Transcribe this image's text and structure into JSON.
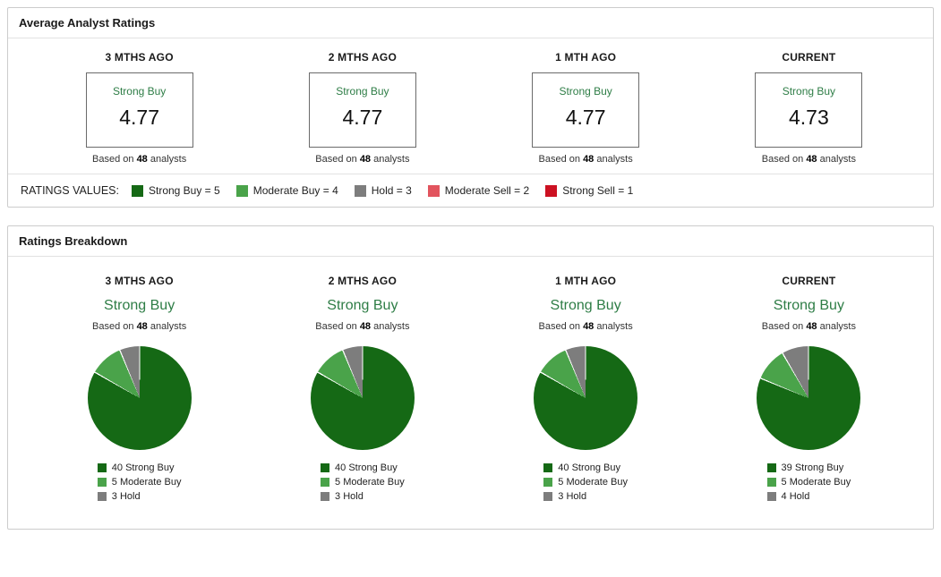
{
  "colors": {
    "strong_buy": "#156915",
    "moderate_buy": "#4aa34a",
    "hold": "#7d7d7d",
    "moderate_sell": "#e2545e",
    "strong_sell": "#cc1122",
    "rating_text_green": "#2e7d46"
  },
  "average_panel": {
    "title": "Average Analyst Ratings",
    "columns": [
      {
        "period": "3 MTHS AGO",
        "rating": "Strong Buy",
        "value": "4.77",
        "based_prefix": "Based on ",
        "analysts": "48",
        "based_suffix": " analysts"
      },
      {
        "period": "2 MTHS AGO",
        "rating": "Strong Buy",
        "value": "4.77",
        "based_prefix": "Based on ",
        "analysts": "48",
        "based_suffix": " analysts"
      },
      {
        "period": "1 MTH AGO",
        "rating": "Strong Buy",
        "value": "4.77",
        "based_prefix": "Based on ",
        "analysts": "48",
        "based_suffix": " analysts"
      },
      {
        "period": "CURRENT",
        "rating": "Strong Buy",
        "value": "4.73",
        "based_prefix": "Based on ",
        "analysts": "48",
        "based_suffix": " analysts"
      }
    ],
    "legend_title": "RATINGS VALUES:",
    "legend": [
      {
        "label": "Strong Buy = 5",
        "color": "#156915"
      },
      {
        "label": "Moderate Buy = 4",
        "color": "#4aa34a"
      },
      {
        "label": "Hold = 3",
        "color": "#7d7d7d"
      },
      {
        "label": "Moderate Sell = 2",
        "color": "#e2545e"
      },
      {
        "label": "Strong Sell = 1",
        "color": "#cc1122"
      }
    ]
  },
  "breakdown_panel": {
    "title": "Ratings Breakdown",
    "columns": [
      {
        "period": "3 MTHS AGO",
        "rating": "Strong Buy",
        "based_prefix": "Based on ",
        "analysts": "48",
        "based_suffix": " analysts",
        "legend": [
          {
            "label": "40 Strong Buy",
            "color": "#156915"
          },
          {
            "label": "5 Moderate Buy",
            "color": "#4aa34a"
          },
          {
            "label": "3 Hold",
            "color": "#7d7d7d"
          }
        ]
      },
      {
        "period": "2 MTHS AGO",
        "rating": "Strong Buy",
        "based_prefix": "Based on ",
        "analysts": "48",
        "based_suffix": " analysts",
        "legend": [
          {
            "label": "40 Strong Buy",
            "color": "#156915"
          },
          {
            "label": "5 Moderate Buy",
            "color": "#4aa34a"
          },
          {
            "label": "3 Hold",
            "color": "#7d7d7d"
          }
        ]
      },
      {
        "period": "1 MTH AGO",
        "rating": "Strong Buy",
        "based_prefix": "Based on ",
        "analysts": "48",
        "based_suffix": " analysts",
        "legend": [
          {
            "label": "40 Strong Buy",
            "color": "#156915"
          },
          {
            "label": "5 Moderate Buy",
            "color": "#4aa34a"
          },
          {
            "label": "3 Hold",
            "color": "#7d7d7d"
          }
        ]
      },
      {
        "period": "CURRENT",
        "rating": "Strong Buy",
        "based_prefix": "Based on ",
        "analysts": "48",
        "based_suffix": " analysts",
        "legend": [
          {
            "label": "39 Strong Buy",
            "color": "#156915"
          },
          {
            "label": "5 Moderate Buy",
            "color": "#4aa34a"
          },
          {
            "label": "4 Hold",
            "color": "#7d7d7d"
          }
        ]
      }
    ]
  },
  "chart_data": [
    {
      "type": "pie",
      "title": "3 MTHS AGO",
      "labels": [
        "Strong Buy",
        "Moderate Buy",
        "Hold"
      ],
      "values": [
        40,
        5,
        3
      ],
      "colors": [
        "#156915",
        "#4aa34a",
        "#7d7d7d"
      ],
      "total_analysts": 48,
      "legend_position": "bottom"
    },
    {
      "type": "pie",
      "title": "2 MTHS AGO",
      "labels": [
        "Strong Buy",
        "Moderate Buy",
        "Hold"
      ],
      "values": [
        40,
        5,
        3
      ],
      "colors": [
        "#156915",
        "#4aa34a",
        "#7d7d7d"
      ],
      "total_analysts": 48,
      "legend_position": "bottom"
    },
    {
      "type": "pie",
      "title": "1 MTH AGO",
      "labels": [
        "Strong Buy",
        "Moderate Buy",
        "Hold"
      ],
      "values": [
        40,
        5,
        3
      ],
      "colors": [
        "#156915",
        "#4aa34a",
        "#7d7d7d"
      ],
      "total_analysts": 48,
      "legend_position": "bottom"
    },
    {
      "type": "pie",
      "title": "CURRENT",
      "labels": [
        "Strong Buy",
        "Moderate Buy",
        "Hold"
      ],
      "values": [
        39,
        5,
        4
      ],
      "colors": [
        "#156915",
        "#4aa34a",
        "#7d7d7d"
      ],
      "total_analysts": 48,
      "legend_position": "bottom"
    }
  ]
}
